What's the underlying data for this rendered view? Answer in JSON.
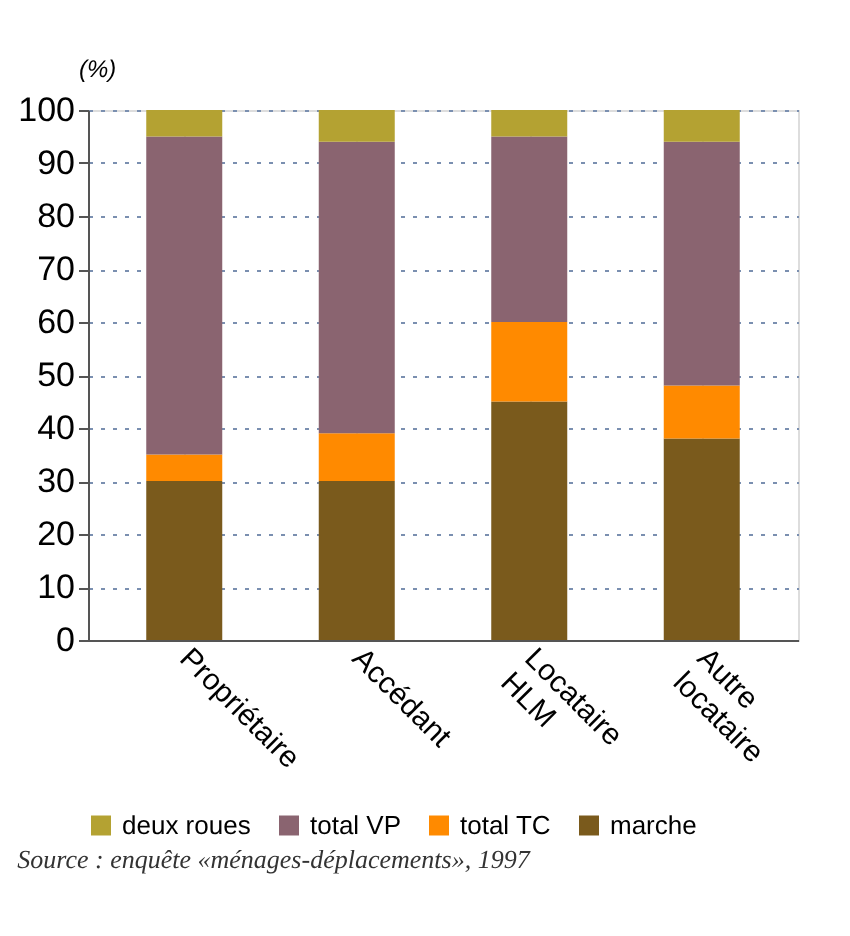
{
  "chart_data": {
    "type": "bar",
    "stacked": true,
    "ylabel": "(%)",
    "categories": [
      "Propriétaire",
      "Accédant",
      "Locataire HLM",
      "Autre locataire"
    ],
    "series": [
      {
        "name": "marche",
        "color": "#7a5a1c",
        "values": [
          30,
          30,
          45,
          38
        ]
      },
      {
        "name": "total TC",
        "color": "#ff8a00",
        "values": [
          5,
          9,
          15,
          10
        ]
      },
      {
        "name": "total VP",
        "color": "#8a6470",
        "values": [
          60,
          55,
          35,
          46
        ]
      },
      {
        "name": "deux roues",
        "color": "#b4a232",
        "values": [
          5,
          6,
          5,
          6
        ]
      }
    ],
    "ylim": [
      0,
      100
    ],
    "yticks": [
      0,
      10,
      20,
      30,
      40,
      50,
      60,
      70,
      80,
      90,
      100
    ],
    "grid": "y",
    "legend": "bottom",
    "annotations": [
      "Source : enquête «ménages-déplacements», 1997"
    ]
  }
}
